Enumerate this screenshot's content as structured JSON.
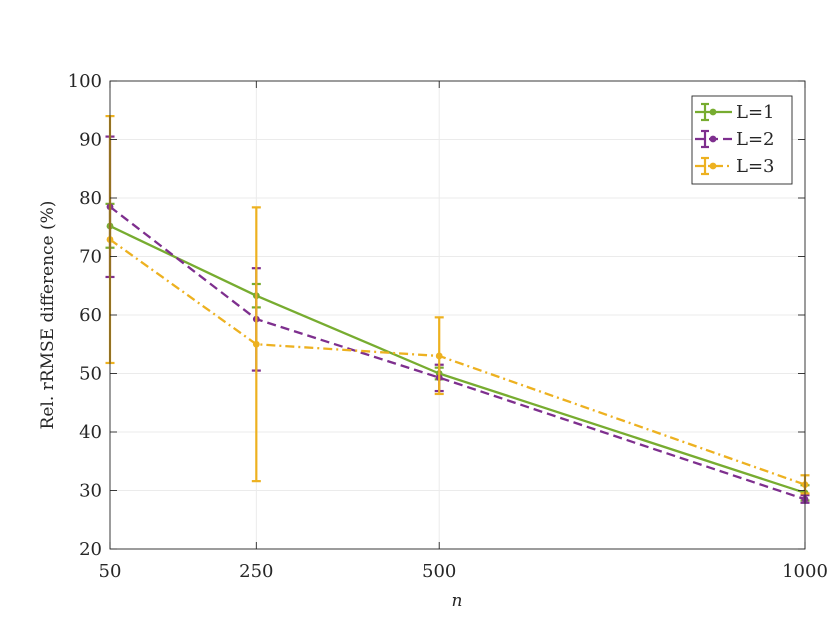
{
  "chart_data": {
    "type": "line",
    "title": "",
    "xlabel": "n",
    "ylabel": "Rel. rRMSE difference (%)",
    "x": [
      50,
      250,
      500,
      1000
    ],
    "x_tick_labels": [
      "50",
      "250",
      "500",
      "1000"
    ],
    "xlim": [
      50,
      1000
    ],
    "ylim": [
      20,
      100
    ],
    "y_ticks": [
      20,
      30,
      40,
      50,
      60,
      70,
      80,
      90,
      100
    ],
    "y_tick_labels": [
      "20",
      "30",
      "40",
      "50",
      "60",
      "70",
      "80",
      "90",
      "100"
    ],
    "grid": true,
    "legend_position": "top-right",
    "series": [
      {
        "name": "L=1",
        "color": "#77AC30",
        "style": "solid",
        "values": [
          75.2,
          63.3,
          50.0,
          29.6
        ],
        "error_low": [
          71.5,
          61.3,
          49.0,
          28.3
        ],
        "error_high": [
          79.0,
          65.3,
          51.0,
          30.9
        ]
      },
      {
        "name": "L=2",
        "color": "#7E2F8E",
        "style": "dashed",
        "values": [
          78.5,
          59.3,
          49.3,
          28.5
        ],
        "error_low": [
          66.5,
          50.5,
          47.0,
          27.9
        ],
        "error_high": [
          90.5,
          68.0,
          51.5,
          29.2
        ]
      },
      {
        "name": "L=3",
        "color": "#EDB120",
        "style": "dashdot",
        "values": [
          72.9,
          55.0,
          53.0,
          31.0
        ],
        "error_low": [
          51.8,
          31.6,
          46.5,
          29.5
        ],
        "error_high": [
          94.0,
          78.4,
          59.6,
          32.6
        ]
      }
    ]
  }
}
